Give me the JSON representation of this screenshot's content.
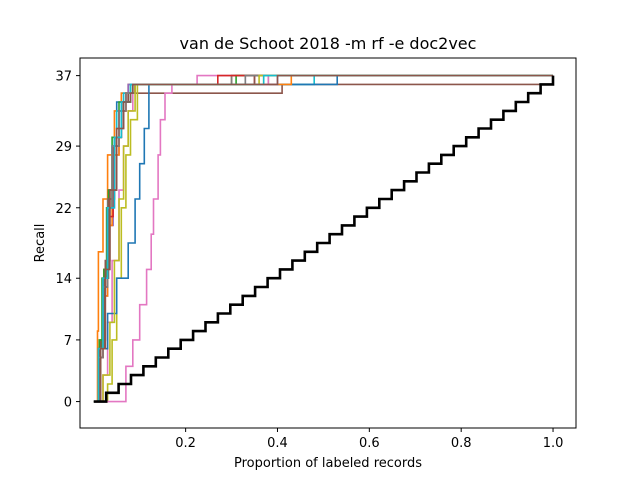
{
  "chart_data": {
    "type": "line",
    "title": "van de Schoot 2018 -m rf -e doc2vec",
    "xlabel": "Proportion of labeled records",
    "ylabel": "Recall",
    "xlim": [
      -0.03,
      1.05
    ],
    "ylim": [
      -3,
      39
    ],
    "x_ticks": [
      {
        "value": 0.2,
        "label": "0.2"
      },
      {
        "value": 0.4,
        "label": "0.4"
      },
      {
        "value": 0.6,
        "label": "0.6"
      },
      {
        "value": 0.8,
        "label": "0.8"
      },
      {
        "value": 1.0,
        "label": "1.0"
      }
    ],
    "y_ticks": [
      {
        "value": 0,
        "label": "0"
      },
      {
        "value": 7,
        "label": "7"
      },
      {
        "value": 14,
        "label": "14"
      },
      {
        "value": 22,
        "label": "22"
      },
      {
        "value": 29,
        "label": "29"
      },
      {
        "value": 37,
        "label": "37"
      }
    ],
    "grid": false,
    "legend": "none",
    "series": [
      {
        "color": "#1f77b4",
        "points": [
          [
            0,
            0
          ],
          [
            0.01,
            5
          ],
          [
            0.02,
            13
          ],
          [
            0.03,
            22
          ],
          [
            0.04,
            29
          ],
          [
            0.05,
            34
          ],
          [
            0.06,
            35
          ],
          [
            0.08,
            35
          ],
          [
            0.08,
            36
          ],
          [
            0.24,
            36
          ],
          [
            0.3,
            37
          ],
          [
            1.0,
            37
          ]
        ]
      },
      {
        "color": "#ff7f0e",
        "points": [
          [
            0,
            0
          ],
          [
            0.008,
            8
          ],
          [
            0.01,
            17
          ],
          [
            0.02,
            23
          ],
          [
            0.03,
            28
          ],
          [
            0.045,
            33
          ],
          [
            0.06,
            35
          ],
          [
            0.075,
            36
          ],
          [
            0.28,
            36
          ],
          [
            0.3,
            37
          ],
          [
            1.0,
            37
          ]
        ]
      },
      {
        "color": "#2ca02c",
        "points": [
          [
            0,
            0
          ],
          [
            0.01,
            6
          ],
          [
            0.018,
            14
          ],
          [
            0.028,
            22
          ],
          [
            0.04,
            30
          ],
          [
            0.055,
            34
          ],
          [
            0.07,
            35
          ],
          [
            0.09,
            36
          ],
          [
            0.36,
            36
          ],
          [
            0.38,
            37
          ],
          [
            1.0,
            37
          ]
        ]
      },
      {
        "color": "#d62728",
        "points": [
          [
            0,
            0
          ],
          [
            0.012,
            6
          ],
          [
            0.022,
            15
          ],
          [
            0.032,
            24
          ],
          [
            0.045,
            30
          ],
          [
            0.06,
            34
          ],
          [
            0.08,
            36
          ],
          [
            0.33,
            36
          ],
          [
            0.35,
            37
          ],
          [
            1.0,
            37
          ]
        ]
      },
      {
        "color": "#9467bd",
        "points": [
          [
            0,
            0
          ],
          [
            0.01,
            5
          ],
          [
            0.02,
            12
          ],
          [
            0.03,
            20
          ],
          [
            0.042,
            28
          ],
          [
            0.055,
            33
          ],
          [
            0.07,
            35
          ],
          [
            0.09,
            36
          ],
          [
            0.31,
            36
          ],
          [
            0.33,
            37
          ],
          [
            1.0,
            37
          ]
        ]
      },
      {
        "color": "#8c564b",
        "points": [
          [
            0,
            0
          ],
          [
            0.015,
            7
          ],
          [
            0.025,
            16
          ],
          [
            0.035,
            24
          ],
          [
            0.05,
            31
          ],
          [
            0.065,
            34
          ],
          [
            0.075,
            35
          ],
          [
            0.4,
            35
          ],
          [
            0.41,
            36
          ],
          [
            1.0,
            37
          ]
        ]
      },
      {
        "color": "#e377c2",
        "points": [
          [
            0,
            0
          ],
          [
            0.02,
            3
          ],
          [
            0.03,
            9
          ],
          [
            0.04,
            16
          ],
          [
            0.055,
            24
          ],
          [
            0.065,
            29
          ],
          [
            0.075,
            33
          ],
          [
            0.085,
            36
          ],
          [
            0.22,
            36
          ],
          [
            0.225,
            37
          ],
          [
            1.0,
            37
          ]
        ]
      },
      {
        "color": "#7f7f7f",
        "points": [
          [
            0,
            0
          ],
          [
            0.01,
            6
          ],
          [
            0.02,
            14
          ],
          [
            0.03,
            23
          ],
          [
            0.045,
            30
          ],
          [
            0.06,
            34
          ],
          [
            0.08,
            36
          ],
          [
            0.28,
            36
          ],
          [
            0.3,
            37
          ],
          [
            1.0,
            37
          ]
        ]
      },
      {
        "color": "#bcbd22",
        "points": [
          [
            0,
            0
          ],
          [
            0.03,
            2
          ],
          [
            0.04,
            7
          ],
          [
            0.05,
            14
          ],
          [
            0.06,
            22
          ],
          [
            0.07,
            28
          ],
          [
            0.08,
            32
          ],
          [
            0.095,
            36
          ],
          [
            0.35,
            36
          ],
          [
            0.37,
            37
          ],
          [
            1.0,
            37
          ]
        ]
      },
      {
        "color": "#17becf",
        "points": [
          [
            0,
            0
          ],
          [
            0.01,
            6
          ],
          [
            0.02,
            13
          ],
          [
            0.03,
            22
          ],
          [
            0.04,
            29
          ],
          [
            0.05,
            33
          ],
          [
            0.065,
            35
          ],
          [
            0.08,
            36
          ],
          [
            0.46,
            36
          ],
          [
            0.48,
            37
          ],
          [
            1.0,
            37
          ]
        ]
      },
      {
        "color": "#1f77b4",
        "points": [
          [
            0,
            0
          ],
          [
            0.015,
            6
          ],
          [
            0.03,
            10
          ],
          [
            0.05,
            14
          ],
          [
            0.075,
            18
          ],
          [
            0.09,
            23
          ],
          [
            0.1,
            27
          ],
          [
            0.11,
            31
          ],
          [
            0.12,
            36
          ],
          [
            0.52,
            36
          ],
          [
            0.53,
            37
          ],
          [
            1.0,
            37
          ]
        ]
      },
      {
        "color": "#ff7f0e",
        "points": [
          [
            0,
            0
          ],
          [
            0.01,
            5
          ],
          [
            0.02,
            12
          ],
          [
            0.03,
            20
          ],
          [
            0.04,
            28
          ],
          [
            0.055,
            33
          ],
          [
            0.07,
            35
          ],
          [
            0.09,
            36
          ],
          [
            0.41,
            36
          ],
          [
            0.43,
            37
          ],
          [
            1.0,
            37
          ]
        ]
      },
      {
        "color": "#2ca02c",
        "points": [
          [
            0,
            0
          ],
          [
            0.012,
            7
          ],
          [
            0.022,
            15
          ],
          [
            0.032,
            24
          ],
          [
            0.045,
            30
          ],
          [
            0.06,
            34
          ],
          [
            0.08,
            36
          ],
          [
            0.29,
            36
          ],
          [
            0.31,
            37
          ],
          [
            1.0,
            37
          ]
        ]
      },
      {
        "color": "#d62728",
        "points": [
          [
            0,
            0
          ],
          [
            0.01,
            5
          ],
          [
            0.02,
            13
          ],
          [
            0.03,
            21
          ],
          [
            0.042,
            29
          ],
          [
            0.055,
            33
          ],
          [
            0.07,
            35
          ],
          [
            0.09,
            36
          ],
          [
            0.25,
            36
          ],
          [
            0.27,
            37
          ],
          [
            1.0,
            37
          ]
        ]
      },
      {
        "color": "#9467bd",
        "points": [
          [
            0,
            0
          ],
          [
            0.01,
            6
          ],
          [
            0.02,
            14
          ],
          [
            0.03,
            22
          ],
          [
            0.045,
            30
          ],
          [
            0.06,
            34
          ],
          [
            0.075,
            36
          ],
          [
            0.38,
            36
          ],
          [
            0.4,
            37
          ],
          [
            1.0,
            37
          ]
        ]
      },
      {
        "color": "#8c564b",
        "points": [
          [
            0,
            0
          ],
          [
            0.012,
            6
          ],
          [
            0.022,
            14
          ],
          [
            0.032,
            23
          ],
          [
            0.045,
            30
          ],
          [
            0.06,
            34
          ],
          [
            0.075,
            35
          ],
          [
            0.085,
            36
          ],
          [
            0.33,
            36
          ],
          [
            0.35,
            37
          ],
          [
            1.0,
            37
          ]
        ]
      },
      {
        "color": "#e377c2",
        "points": [
          [
            0,
            0
          ],
          [
            0.06,
            0
          ],
          [
            0.07,
            4
          ],
          [
            0.085,
            7
          ],
          [
            0.1,
            11
          ],
          [
            0.115,
            15
          ],
          [
            0.125,
            19
          ],
          [
            0.13,
            23
          ],
          [
            0.14,
            28
          ],
          [
            0.145,
            32
          ],
          [
            0.155,
            35
          ],
          [
            0.17,
            36
          ],
          [
            0.37,
            36
          ],
          [
            0.38,
            37
          ],
          [
            1.0,
            37
          ]
        ]
      },
      {
        "color": "#7f7f7f",
        "points": [
          [
            0,
            0
          ],
          [
            0.01,
            5
          ],
          [
            0.02,
            13
          ],
          [
            0.03,
            22
          ],
          [
            0.04,
            29
          ],
          [
            0.055,
            33
          ],
          [
            0.07,
            35
          ],
          [
            0.09,
            36
          ],
          [
            0.31,
            36
          ],
          [
            0.33,
            37
          ],
          [
            1.0,
            37
          ]
        ]
      },
      {
        "color": "#bcbd22",
        "points": [
          [
            0,
            0
          ],
          [
            0.02,
            3
          ],
          [
            0.035,
            9
          ],
          [
            0.045,
            16
          ],
          [
            0.055,
            23
          ],
          [
            0.065,
            29
          ],
          [
            0.075,
            33
          ],
          [
            0.09,
            36
          ],
          [
            0.34,
            36
          ],
          [
            0.36,
            37
          ],
          [
            1.0,
            37
          ]
        ]
      },
      {
        "color": "#17becf",
        "points": [
          [
            0,
            0
          ],
          [
            0.01,
            6
          ],
          [
            0.02,
            14
          ],
          [
            0.03,
            22
          ],
          [
            0.045,
            30
          ],
          [
            0.06,
            34
          ],
          [
            0.08,
            36
          ],
          [
            0.35,
            36
          ],
          [
            0.37,
            37
          ],
          [
            1.0,
            37
          ]
        ]
      },
      {
        "color": "#8c564b",
        "points": [
          [
            0,
            0
          ],
          [
            0.015,
            6
          ],
          [
            0.025,
            15
          ],
          [
            0.035,
            24
          ],
          [
            0.05,
            31
          ],
          [
            0.065,
            34
          ],
          [
            0.08,
            35
          ],
          [
            0.085,
            36
          ],
          [
            0.39,
            36
          ],
          [
            0.4,
            37
          ],
          [
            1.0,
            37
          ]
        ]
      }
    ],
    "baseline": {
      "color": "#000000",
      "steps": 37,
      "x_end": 1.0
    }
  }
}
